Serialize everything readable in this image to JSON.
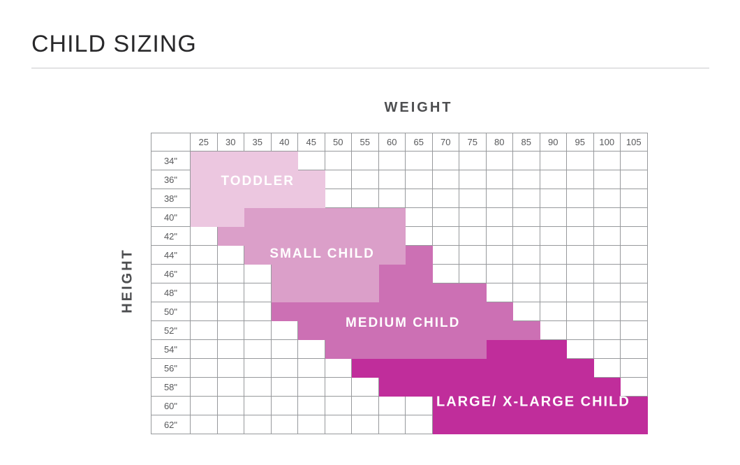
{
  "title": "CHILD SIZING",
  "axes": {
    "x_label": "WEIGHT",
    "y_label": "HEIGHT"
  },
  "chart_data": {
    "type": "heatmap",
    "title": "CHILD SIZING",
    "xlabel": "WEIGHT",
    "ylabel": "HEIGHT",
    "grid": true,
    "legend_position": "none",
    "columns": [
      "25",
      "30",
      "35",
      "40",
      "45",
      "50",
      "55",
      "60",
      "65",
      "70",
      "75",
      "80",
      "85",
      "90",
      "95",
      "100",
      "105"
    ],
    "row_values": [
      "34",
      "36",
      "38",
      "40",
      "42",
      "44",
      "46",
      "48",
      "50",
      "52",
      "54",
      "56",
      "58",
      "60",
      "62"
    ],
    "row_suffix": "\"",
    "regions": [
      {
        "name": "toddler",
        "label": "TODDLER",
        "color": "#ecc7e0",
        "segments": [
          {
            "row": "34",
            "from": "25",
            "to": "40"
          },
          {
            "row": "36",
            "from": "25",
            "to": "45"
          },
          {
            "row": "38",
            "from": "25",
            "to": "45"
          },
          {
            "row": "40",
            "from": "25",
            "to": "30"
          }
        ],
        "label_center": {
          "row": 1.6,
          "col": 2.5
        },
        "label_font_px": 19
      },
      {
        "name": "small-child",
        "label": "SMALL CHILD",
        "color": "#db9fc9",
        "segments": [
          {
            "row": "40",
            "from": "35",
            "to": "60"
          },
          {
            "row": "42",
            "from": "30",
            "to": "60"
          },
          {
            "row": "44",
            "from": "35",
            "to": "60"
          },
          {
            "row": "46",
            "from": "40",
            "to": "55"
          },
          {
            "row": "48",
            "from": "40",
            "to": "55"
          }
        ],
        "label_center": {
          "row": 5.45,
          "col": 4.9
        },
        "label_font_px": 19
      },
      {
        "name": "medium-child",
        "label": "MEDIUM CHILD",
        "color": "#cc70b4",
        "segments": [
          {
            "row": "44",
            "from": "65",
            "to": "65"
          },
          {
            "row": "46",
            "from": "60",
            "to": "65"
          },
          {
            "row": "48",
            "from": "60",
            "to": "75"
          },
          {
            "row": "50",
            "from": "40",
            "to": "80"
          },
          {
            "row": "52",
            "from": "45",
            "to": "85"
          },
          {
            "row": "54",
            "from": "50",
            "to": "75"
          }
        ],
        "label_center": {
          "row": 9.1,
          "col": 7.9
        },
        "label_font_px": 19
      },
      {
        "name": "large-xlarge-child",
        "label": "LARGE/ X-LARGE CHILD",
        "color": "#c02d9b",
        "segments": [
          {
            "row": "54",
            "from": "80",
            "to": "90"
          },
          {
            "row": "56",
            "from": "55",
            "to": "95"
          },
          {
            "row": "58",
            "from": "60",
            "to": "100"
          },
          {
            "row": "60",
            "from": "70",
            "to": "105"
          },
          {
            "row": "62",
            "from": "70",
            "to": "105"
          }
        ],
        "label_center": {
          "row": 13.3,
          "col": 12.75
        },
        "label_font_px": 20
      }
    ]
  }
}
